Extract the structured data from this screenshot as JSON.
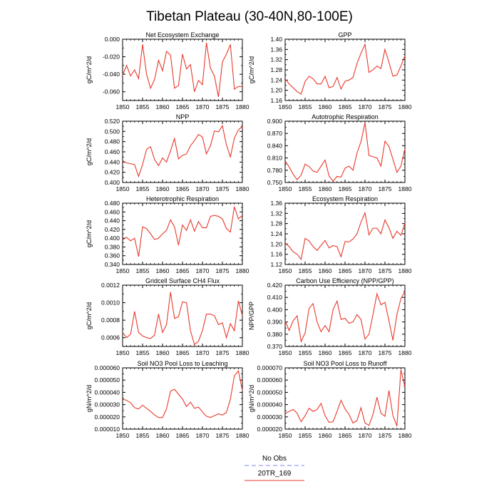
{
  "figure": {
    "title": "Tibetan Plateau (30-40N,80-100E)",
    "legend": [
      {
        "label": "No Obs",
        "color": "#8080ff",
        "dashed": true
      },
      {
        "label": "20TR_169",
        "color": "#e8392b",
        "dashed": false
      }
    ],
    "series_color": "#e8392b"
  },
  "chart_data": [
    {
      "type": "line",
      "title": "Net Ecosystem Exchange",
      "ylabel": "gC/m^2/d",
      "xlim": [
        1850,
        1880
      ],
      "xticks": [
        1850,
        1855,
        1860,
        1865,
        1870,
        1875,
        1880
      ],
      "ylim": [
        -0.07,
        0.0
      ],
      "yticks": [
        0.0,
        -0.02,
        -0.04,
        -0.06
      ],
      "ytick_labels": [
        "0.000",
        "-0.020",
        "-0.040",
        "-0.060"
      ],
      "series": [
        {
          "x": [
            1850,
            1851,
            1852,
            1853,
            1854,
            1855,
            1856,
            1857,
            1858,
            1859,
            1860,
            1861,
            1862,
            1863,
            1864,
            1865,
            1866,
            1867,
            1868,
            1869,
            1870,
            1871,
            1872,
            1873,
            1874,
            1875,
            1876,
            1877,
            1878,
            1879,
            1880
          ],
          "values": [
            -0.041,
            -0.03,
            -0.042,
            -0.035,
            -0.045,
            -0.006,
            -0.04,
            -0.056,
            -0.046,
            -0.024,
            -0.036,
            -0.014,
            -0.018,
            -0.056,
            -0.053,
            -0.017,
            -0.034,
            -0.029,
            -0.06,
            -0.047,
            -0.052,
            -0.004,
            -0.033,
            -0.042,
            -0.066,
            -0.026,
            -0.017,
            -0.006,
            -0.057,
            -0.054,
            -0.054
          ]
        }
      ]
    },
    {
      "type": "line",
      "title": "GPP",
      "ylabel": "gC/m^2/d",
      "xlim": [
        1850,
        1880
      ],
      "xticks": [
        1850,
        1855,
        1860,
        1865,
        1870,
        1875,
        1880
      ],
      "ylim": [
        1.16,
        1.4
      ],
      "yticks": [
        1.16,
        1.2,
        1.24,
        1.28,
        1.32,
        1.36,
        1.4
      ],
      "ytick_labels": [
        "1.16",
        "1.20",
        "1.24",
        "1.28",
        "1.32",
        "1.36",
        "1.40"
      ],
      "series": [
        {
          "x": [
            1850,
            1851,
            1852,
            1853,
            1854,
            1855,
            1856,
            1857,
            1858,
            1859,
            1860,
            1861,
            1862,
            1863,
            1864,
            1865,
            1866,
            1867,
            1868,
            1869,
            1870,
            1871,
            1872,
            1873,
            1874,
            1875,
            1876,
            1877,
            1878,
            1879,
            1880
          ],
          "values": [
            1.245,
            1.225,
            1.21,
            1.195,
            1.185,
            1.235,
            1.255,
            1.245,
            1.225,
            1.225,
            1.255,
            1.21,
            1.215,
            1.25,
            1.205,
            1.235,
            1.24,
            1.25,
            1.305,
            1.345,
            1.38,
            1.27,
            1.28,
            1.295,
            1.285,
            1.36,
            1.31,
            1.255,
            1.26,
            1.295,
            1.335
          ]
        }
      ]
    },
    {
      "type": "line",
      "title": "NPP",
      "ylabel": "gC/m^2/d",
      "xlim": [
        1850,
        1880
      ],
      "xticks": [
        1850,
        1855,
        1860,
        1865,
        1870,
        1875,
        1880
      ],
      "ylim": [
        0.4,
        0.52
      ],
      "yticks": [
        0.4,
        0.42,
        0.44,
        0.46,
        0.48,
        0.5,
        0.52
      ],
      "ytick_labels": [
        "0.400",
        "0.420",
        "0.440",
        "0.460",
        "0.480",
        "0.500",
        "0.520"
      ],
      "series": [
        {
          "x": [
            1850,
            1851,
            1852,
            1853,
            1854,
            1855,
            1856,
            1857,
            1858,
            1859,
            1860,
            1861,
            1862,
            1863,
            1864,
            1865,
            1866,
            1867,
            1868,
            1869,
            1870,
            1871,
            1872,
            1873,
            1874,
            1875,
            1876,
            1877,
            1878,
            1879,
            1880
          ],
          "values": [
            0.443,
            0.438,
            0.437,
            0.435,
            0.412,
            0.435,
            0.465,
            0.47,
            0.445,
            0.433,
            0.448,
            0.44,
            0.462,
            0.486,
            0.446,
            0.453,
            0.456,
            0.472,
            0.482,
            0.494,
            0.489,
            0.456,
            0.472,
            0.501,
            0.499,
            0.511,
            0.474,
            0.45,
            0.487,
            0.503,
            0.51
          ]
        }
      ]
    },
    {
      "type": "line",
      "title": "Autotrophic Respiration",
      "ylabel": "",
      "xlim": [
        1850,
        1880
      ],
      "xticks": [
        1850,
        1855,
        1860,
        1865,
        1870,
        1875,
        1880
      ],
      "ylim": [
        0.75,
        0.9
      ],
      "yticks": [
        0.75,
        0.78,
        0.81,
        0.84,
        0.87,
        0.9
      ],
      "ytick_labels": [
        "0.750",
        "0.780",
        "0.810",
        "0.840",
        "0.870",
        "0.900"
      ],
      "series": [
        {
          "x": [
            1850,
            1851,
            1852,
            1853,
            1854,
            1855,
            1856,
            1857,
            1858,
            1859,
            1860,
            1861,
            1862,
            1863,
            1864,
            1865,
            1866,
            1867,
            1868,
            1869,
            1870,
            1871,
            1872,
            1873,
            1874,
            1875,
            1876,
            1877,
            1878,
            1879,
            1880
          ],
          "values": [
            0.803,
            0.788,
            0.77,
            0.757,
            0.768,
            0.795,
            0.789,
            0.778,
            0.775,
            0.79,
            0.805,
            0.766,
            0.753,
            0.765,
            0.763,
            0.785,
            0.79,
            0.78,
            0.822,
            0.85,
            0.896,
            0.816,
            0.813,
            0.81,
            0.79,
            0.851,
            0.838,
            0.807,
            0.775,
            0.79,
            0.832
          ]
        }
      ]
    },
    {
      "type": "line",
      "title": "Heterotrophic Respiration",
      "ylabel": "gC/m^2/d",
      "xlim": [
        1850,
        1880
      ],
      "xticks": [
        1850,
        1855,
        1860,
        1865,
        1870,
        1875,
        1880
      ],
      "ylim": [
        0.34,
        0.48
      ],
      "yticks": [
        0.34,
        0.36,
        0.38,
        0.4,
        0.42,
        0.44,
        0.46,
        0.48
      ],
      "ytick_labels": [
        "0.340",
        "0.360",
        "0.380",
        "0.400",
        "0.420",
        "0.440",
        "0.460",
        "0.480"
      ],
      "series": [
        {
          "x": [
            1850,
            1851,
            1852,
            1853,
            1854,
            1855,
            1856,
            1857,
            1858,
            1859,
            1860,
            1861,
            1862,
            1863,
            1864,
            1865,
            1866,
            1867,
            1868,
            1869,
            1870,
            1871,
            1872,
            1873,
            1874,
            1875,
            1876,
            1877,
            1878,
            1879,
            1880
          ],
          "values": [
            0.396,
            0.402,
            0.394,
            0.4,
            0.358,
            0.426,
            0.422,
            0.41,
            0.397,
            0.4,
            0.41,
            0.418,
            0.442,
            0.426,
            0.384,
            0.43,
            0.418,
            0.442,
            0.416,
            0.438,
            0.424,
            0.424,
            0.45,
            0.452,
            0.45,
            0.444,
            0.422,
            0.414,
            0.472,
            0.444,
            0.452
          ]
        }
      ]
    },
    {
      "type": "line",
      "title": "Ecosystem Respiration",
      "ylabel": "",
      "xlim": [
        1850,
        1880
      ],
      "xticks": [
        1850,
        1855,
        1860,
        1865,
        1870,
        1875,
        1880
      ],
      "ylim": [
        1.12,
        1.36
      ],
      "yticks": [
        1.12,
        1.16,
        1.2,
        1.24,
        1.28,
        1.32,
        1.36
      ],
      "ytick_labels": [
        "1.12",
        "1.16",
        "1.20",
        "1.24",
        "1.28",
        "1.32",
        "1.36"
      ],
      "series": [
        {
          "x": [
            1850,
            1851,
            1852,
            1853,
            1854,
            1855,
            1856,
            1857,
            1858,
            1859,
            1860,
            1861,
            1862,
            1863,
            1864,
            1865,
            1866,
            1867,
            1868,
            1869,
            1870,
            1871,
            1872,
            1873,
            1874,
            1875,
            1876,
            1877,
            1878,
            1879,
            1880
          ],
          "values": [
            1.205,
            1.19,
            1.17,
            1.16,
            1.14,
            1.222,
            1.212,
            1.19,
            1.175,
            1.195,
            1.214,
            1.185,
            1.194,
            1.19,
            1.15,
            1.21,
            1.208,
            1.22,
            1.24,
            1.286,
            1.322,
            1.236,
            1.262,
            1.262,
            1.24,
            1.294,
            1.264,
            1.222,
            1.25,
            1.234,
            1.282
          ]
        }
      ]
    },
    {
      "type": "line",
      "title": "Gridcell Surface CH4 Flux",
      "ylabel": "gC/m^2/d",
      "xlim": [
        1850,
        1880
      ],
      "xticks": [
        1850,
        1855,
        1860,
        1865,
        1870,
        1875,
        1880
      ],
      "ylim": [
        0.0005,
        0.0012
      ],
      "yticks": [
        0.0006,
        0.0008,
        0.001,
        0.0012
      ],
      "ytick_labels": [
        "0.0006",
        "0.0008",
        "0.0010",
        "0.0012"
      ],
      "series": [
        {
          "x": [
            1850,
            1851,
            1852,
            1853,
            1854,
            1855,
            1856,
            1857,
            1858,
            1859,
            1860,
            1861,
            1862,
            1863,
            1864,
            1865,
            1866,
            1867,
            1868,
            1869,
            1870,
            1871,
            1872,
            1873,
            1874,
            1875,
            1876,
            1877,
            1878,
            1879,
            1880
          ],
          "values": [
            0.00066,
            0.0006,
            0.00064,
            0.0009,
            0.00066,
            0.00062,
            0.0006,
            0.00059,
            0.00063,
            0.00087,
            0.00066,
            0.00075,
            0.00112,
            0.00082,
            0.00084,
            0.00101,
            0.001,
            0.00068,
            0.00052,
            0.00056,
            0.00068,
            0.00087,
            0.00087,
            0.00085,
            0.00075,
            0.00077,
            0.0006,
            0.00076,
            0.00068,
            0.00102,
            0.00085
          ]
        }
      ]
    },
    {
      "type": "line",
      "title": "Carbon Use Efficiency (NPP/GPP)",
      "ylabel": "NPP/GPP",
      "xlim": [
        1850,
        1880
      ],
      "xticks": [
        1850,
        1855,
        1860,
        1865,
        1870,
        1875,
        1880
      ],
      "ylim": [
        0.37,
        0.42
      ],
      "yticks": [
        0.37,
        0.38,
        0.39,
        0.4,
        0.41,
        0.42
      ],
      "ytick_labels": [
        "0.370",
        "0.380",
        "0.390",
        "0.400",
        "0.410",
        "0.420"
      ],
      "series": [
        {
          "x": [
            1850,
            1851,
            1852,
            1853,
            1854,
            1855,
            1856,
            1857,
            1858,
            1859,
            1860,
            1861,
            1862,
            1863,
            1864,
            1865,
            1866,
            1867,
            1868,
            1869,
            1870,
            1871,
            1872,
            1873,
            1874,
            1875,
            1876,
            1877,
            1878,
            1879,
            1880
          ],
          "values": [
            0.391,
            0.383,
            0.391,
            0.395,
            0.374,
            0.381,
            0.401,
            0.405,
            0.39,
            0.382,
            0.387,
            0.382,
            0.4,
            0.407,
            0.392,
            0.393,
            0.389,
            0.39,
            0.396,
            0.392,
            0.376,
            0.38,
            0.396,
            0.413,
            0.404,
            0.406,
            0.391,
            0.375,
            0.396,
            0.409,
            0.415
          ]
        }
      ]
    },
    {
      "type": "line",
      "title": "Soil NO3 Pool Loss to Leaching",
      "ylabel": "gN/m^2/d",
      "xlim": [
        1850,
        1880
      ],
      "xticks": [
        1850,
        1855,
        1860,
        1865,
        1870,
        1875,
        1880
      ],
      "ylim": [
        1e-05,
        6e-05
      ],
      "yticks": [
        1e-05,
        2e-05,
        3e-05,
        4e-05,
        5e-05,
        6e-05
      ],
      "ytick_labels": [
        "0.000010",
        "0.000020",
        "0.000030",
        "0.000040",
        "0.000050",
        "0.000060"
      ],
      "series": [
        {
          "x": [
            1850,
            1851,
            1852,
            1853,
            1854,
            1855,
            1856,
            1857,
            1858,
            1859,
            1860,
            1861,
            1862,
            1863,
            1864,
            1865,
            1866,
            1867,
            1868,
            1869,
            1870,
            1871,
            1872,
            1873,
            1874,
            1875,
            1876,
            1877,
            1878,
            1879,
            1880
          ],
          "values": [
            3.45e-05,
            3.35e-05,
            3.15e-05,
            2.75e-05,
            2.65e-05,
            2.95e-05,
            2.7e-05,
            2.45e-05,
            2.15e-05,
            1.95e-05,
            1.95e-05,
            2.65e-05,
            4.1e-05,
            4.25e-05,
            3.85e-05,
            3.45e-05,
            2.85e-05,
            3.2e-05,
            2.7e-05,
            2.8e-05,
            2.4e-05,
            2.05e-05,
            1.95e-05,
            2.1e-05,
            2.25e-05,
            2.15e-05,
            2.35e-05,
            3.45e-05,
            5.35e-05,
            5.75e-05,
            4.15e-05
          ]
        }
      ]
    },
    {
      "type": "line",
      "title": "Soil NO3 Pool Loss to Runoff",
      "ylabel": "gN/m^2/d",
      "xlim": [
        1850,
        1880
      ],
      "xticks": [
        1850,
        1855,
        1860,
        1865,
        1870,
        1875,
        1880
      ],
      "ylim": [
        2e-05,
        7e-05
      ],
      "yticks": [
        2e-05,
        3e-05,
        4e-05,
        5e-05,
        6e-05,
        7e-05
      ],
      "ytick_labels": [
        "0.000020",
        "0.000030",
        "0.000040",
        "0.000050",
        "0.000060",
        "0.000070"
      ],
      "series": [
        {
          "x": [
            1850,
            1851,
            1852,
            1853,
            1854,
            1855,
            1856,
            1857,
            1858,
            1859,
            1860,
            1861,
            1862,
            1863,
            1864,
            1865,
            1866,
            1867,
            1868,
            1869,
            1870,
            1871,
            1872,
            1873,
            1874,
            1875,
            1876,
            1877,
            1878,
            1879,
            1880
          ],
          "values": [
            3.25e-05,
            3.45e-05,
            3.6e-05,
            3.3e-05,
            2.6e-05,
            3.1e-05,
            3.7e-05,
            3.45e-05,
            3.6e-05,
            4.1e-05,
            3.1e-05,
            2.55e-05,
            2.6e-05,
            3.45e-05,
            4.35e-05,
            3.65e-05,
            3.2e-05,
            2.5e-05,
            2.7e-05,
            3.75e-05,
            2.5e-05,
            2.3e-05,
            3.2e-05,
            4.6e-05,
            3.3e-05,
            3.05e-05,
            5.15e-05,
            3.1e-05,
            2.25e-05,
            6.85e-05,
            5.45e-05
          ]
        }
      ]
    }
  ]
}
